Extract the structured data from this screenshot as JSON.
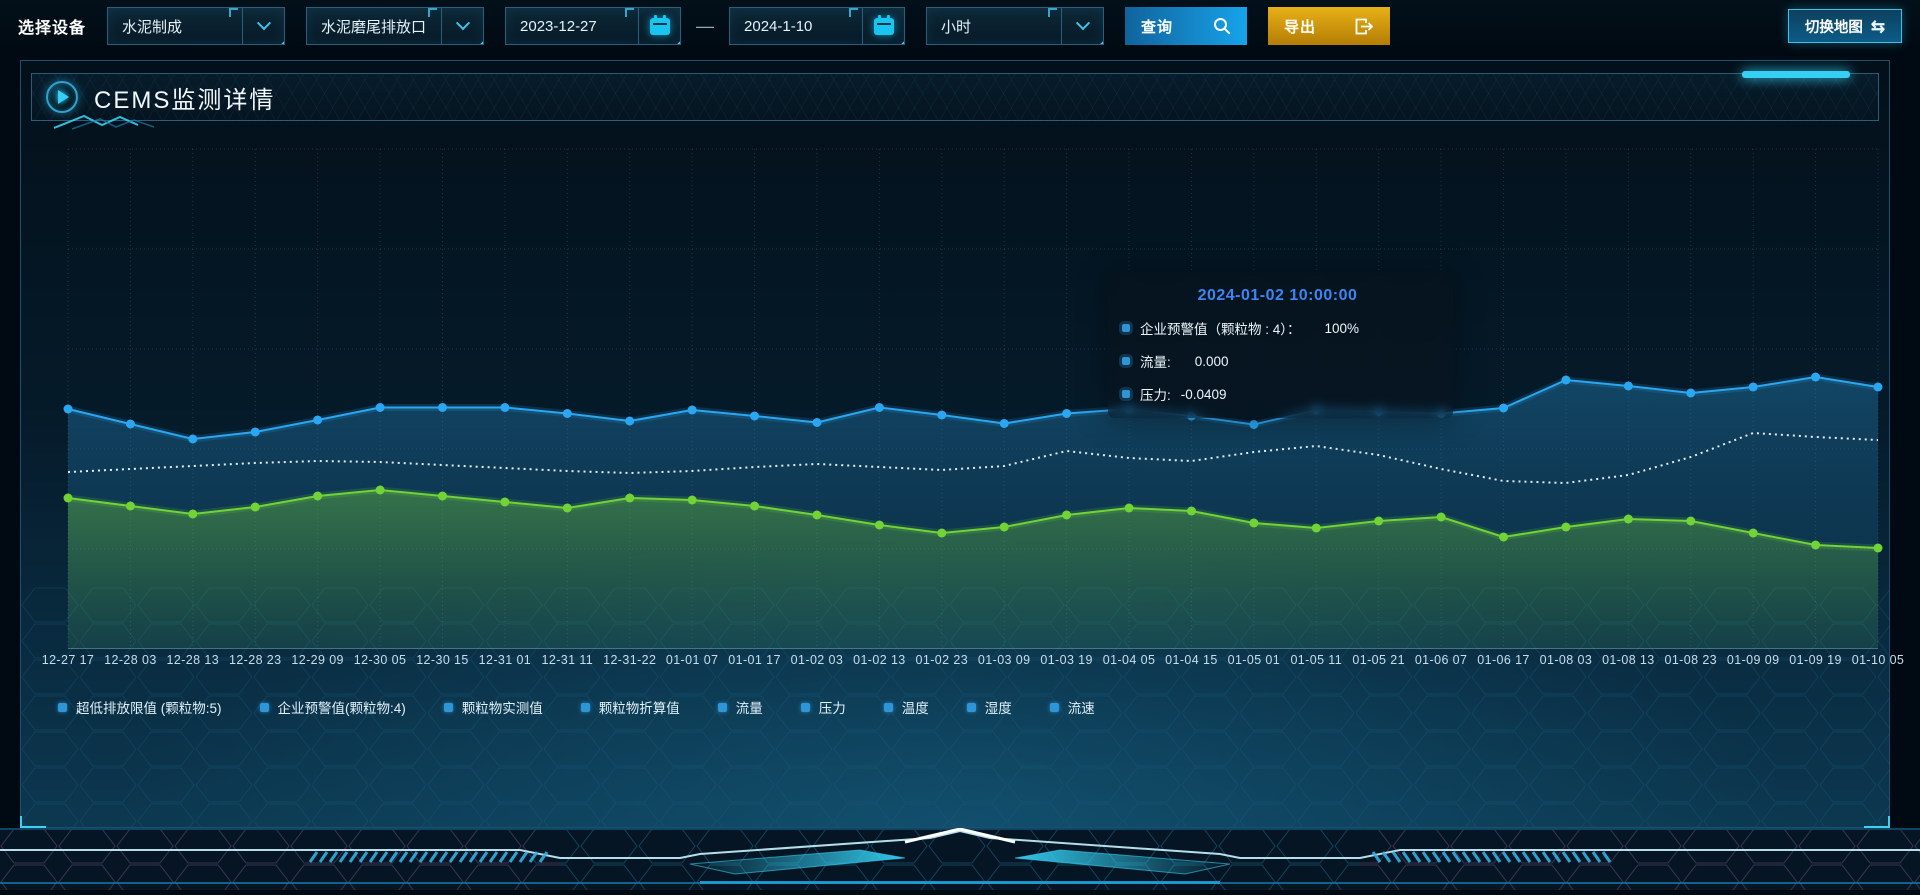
{
  "colors": {
    "accent_cyan": "#35d0f4",
    "line_blue": "#2ba7f2",
    "line_white": "#e3edf2",
    "line_green": "#72d337",
    "legend_marker": "#2e96d6",
    "button_blue": "#17a3ea",
    "button_orange": "#d9980e",
    "tooltip_title_blue": "#3b86f2"
  },
  "toolbar": {
    "label": "选择设备",
    "device_select": {
      "value": "水泥制成"
    },
    "outlet_select": {
      "value": "水泥磨尾排放口"
    },
    "date_start": {
      "value": "2023-12-27"
    },
    "date_range_separator": "—",
    "date_end": {
      "value": "2024-1-10"
    },
    "interval_select": {
      "value": "小时"
    },
    "query_button": "查询",
    "export_button": "导出",
    "switch_map_button": "切换地图"
  },
  "panel": {
    "title": "CEMS监测详情"
  },
  "tooltip": {
    "title": "2024-01-02 10:00:00",
    "items": [
      {
        "label": "企业预警值（颗粒物 : 4）：",
        "value": "100%"
      },
      {
        "label": "流量:",
        "value": "0.000"
      },
      {
        "label": "压力:",
        "value": "-0.0409"
      }
    ]
  },
  "legend": {
    "items": [
      "超低排放限值 (颗粒物:5)",
      "企业预警值(颗粒物:4)",
      "颗粒物实测值",
      "颗粒物折算值",
      "流量",
      "压力",
      "温度",
      "湿度",
      "流速"
    ]
  },
  "chart_data": {
    "type": "line",
    "title": "CEMS监测详情",
    "xlabel": "",
    "ylabel": "",
    "grid": true,
    "legend_position": "bottom",
    "ylim": [
      0,
      100
    ],
    "value_unit": "relative height % (no y-axis labels shown in chart)",
    "categories": [
      "12-27 17",
      "12-28 03",
      "12-28 13",
      "12-28 23",
      "12-29 09",
      "12-30 05",
      "12-30 15",
      "12-31 01",
      "12-31 11",
      "12-31-22",
      "01-01 07",
      "01-01 17",
      "01-02 03",
      "01-02 13",
      "01-02 23",
      "01-03 09",
      "01-03 19",
      "01-04 05",
      "01-04 15",
      "01-05 01",
      "01-05 11",
      "01-05 21",
      "01-06 07",
      "01-06 17",
      "01-08 03",
      "01-08 13",
      "01-08 23",
      "01-09 09",
      "01-09 19",
      "01-10 05"
    ],
    "series": [
      {
        "name": "企业预警值(颗粒物:4)",
        "color": "#2ba7f2",
        "line_style": "solid",
        "dots": true,
        "area": true,
        "area_color": "rgba(40,140,200,0.35)",
        "values": [
          48,
          45,
          42,
          43.4,
          45.8,
          48.3,
          48.3,
          48.3,
          47.1,
          45.6,
          47.8,
          46.6,
          45.3,
          48.3,
          46.8,
          45.1,
          47.1,
          48,
          46.6,
          44.9,
          47.8,
          47.5,
          47.1,
          48.2,
          53.8,
          52.6,
          51.2,
          52.4,
          54.4,
          52.4
        ]
      },
      {
        "name": "流量",
        "color": "#e3edf2",
        "line_style": "dotted",
        "dots": false,
        "area": false,
        "area_color": "none",
        "values": [
          35.4,
          36,
          36.6,
          37.2,
          37.6,
          37.4,
          36.8,
          36.2,
          35.6,
          35.2,
          35.6,
          36.4,
          37,
          36.4,
          35.8,
          36.6,
          39.6,
          38.2,
          37.6,
          39.4,
          40.6,
          38.8,
          36,
          33.6,
          33.2,
          34.8,
          38.4,
          43.2,
          42.4,
          41.8
        ]
      },
      {
        "name": "压力",
        "color": "#72d337",
        "line_style": "solid",
        "dots": true,
        "area": true,
        "area_color": "rgba(120,210,60,0.32)",
        "values": [
          30.2,
          28.6,
          27,
          28.4,
          30.6,
          31.8,
          30.6,
          29.4,
          28.2,
          30.2,
          29.8,
          28.6,
          26.8,
          24.8,
          23.2,
          24.4,
          26.8,
          28.2,
          27.6,
          25.2,
          24.2,
          25.6,
          26.4,
          22.4,
          24.4,
          26,
          25.6,
          23.2,
          20.8,
          20.2
        ]
      }
    ]
  }
}
